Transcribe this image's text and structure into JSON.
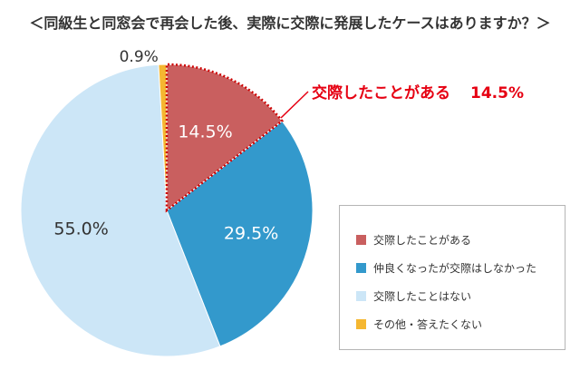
{
  "title": "＜同級生と同窓会で再会した後、実際に交際に発展したケースはありますか？＞",
  "chart_data": {
    "type": "pie",
    "title": "＜同級生と同窓会で再会した後、実際に交際に発展したケースはありますか？＞",
    "start_angle_deg": 0,
    "direction": "clockwise",
    "slices": [
      {
        "label": "交際したことがある",
        "value": 14.5,
        "value_label": "14.5%",
        "color": "#c95f5f",
        "label_color": "#ffffff",
        "highlighted": true
      },
      {
        "label": "仲良くなったが交際はしなかった",
        "value": 29.5,
        "value_label": "29.5%",
        "color": "#3399cc",
        "label_color": "#ffffff"
      },
      {
        "label": "交際したことはない",
        "value": 55.0,
        "value_label": "55.0%",
        "color": "#cce6f7",
        "label_color": "#333333"
      },
      {
        "label": "その他・答えたくない",
        "value": 0.9,
        "value_label": "0.9%",
        "color": "#f5b731",
        "label_color": "#333333"
      }
    ],
    "legend_position": "bottom-right",
    "callout": {
      "label": "交際したことがある",
      "value": "14.5%",
      "color": "#e60012"
    }
  }
}
